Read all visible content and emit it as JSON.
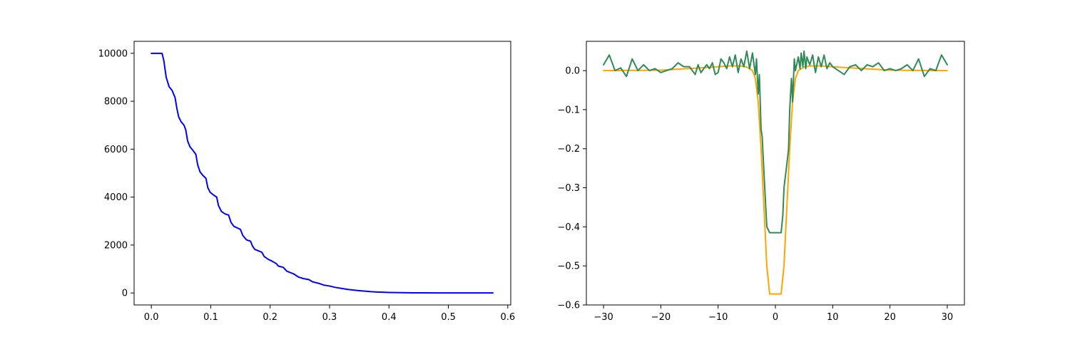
{
  "chart_data": [
    {
      "type": "line",
      "title": "",
      "xlabel": "",
      "ylabel": "",
      "xlim": [
        -0.029,
        0.605
      ],
      "ylim": [
        -500,
        10500
      ],
      "x_ticks": [
        {
          "value": 0.0,
          "label": "0.0"
        },
        {
          "value": 0.1,
          "label": "0.1"
        },
        {
          "value": 0.2,
          "label": "0.2"
        },
        {
          "value": 0.3,
          "label": "0.3"
        },
        {
          "value": 0.4,
          "label": "0.4"
        },
        {
          "value": 0.5,
          "label": "0.5"
        },
        {
          "value": 0.6,
          "label": "0.6"
        }
      ],
      "y_ticks": [
        {
          "value": 0,
          "label": "0"
        },
        {
          "value": 2000,
          "label": "2000"
        },
        {
          "value": 4000,
          "label": "4000"
        },
        {
          "value": 6000,
          "label": "6000"
        },
        {
          "value": 8000,
          "label": "8000"
        },
        {
          "value": 10000,
          "label": "10000"
        }
      ],
      "series": [
        {
          "color": "#0000ff",
          "x": [
            0.0,
            0.018,
            0.021,
            0.025,
            0.03,
            0.035,
            0.04,
            0.043,
            0.046,
            0.05,
            0.055,
            0.058,
            0.061,
            0.065,
            0.07,
            0.075,
            0.078,
            0.082,
            0.087,
            0.092,
            0.095,
            0.099,
            0.104,
            0.11,
            0.113,
            0.118,
            0.124,
            0.13,
            0.134,
            0.139,
            0.146,
            0.15,
            0.154,
            0.16,
            0.167,
            0.17,
            0.174,
            0.181,
            0.186,
            0.19,
            0.197,
            0.203,
            0.21,
            0.214,
            0.222,
            0.228,
            0.236,
            0.24,
            0.248,
            0.256,
            0.265,
            0.272,
            0.282,
            0.29,
            0.3,
            0.31,
            0.32,
            0.33,
            0.34,
            0.35,
            0.36,
            0.37,
            0.38,
            0.39,
            0.4,
            0.42,
            0.44,
            0.46,
            0.48,
            0.5,
            0.53,
            0.575
          ],
          "y": [
            10000,
            10000,
            9700,
            9000,
            8600,
            8450,
            8150,
            7700,
            7350,
            7150,
            7000,
            6800,
            6350,
            6100,
            5950,
            5780,
            5350,
            5050,
            4900,
            4780,
            4400,
            4200,
            4100,
            4000,
            3650,
            3400,
            3300,
            3250,
            2950,
            2780,
            2700,
            2650,
            2400,
            2220,
            2160,
            1970,
            1820,
            1750,
            1700,
            1520,
            1400,
            1330,
            1230,
            1120,
            1070,
            910,
            830,
            790,
            660,
            600,
            560,
            460,
            400,
            330,
            290,
            230,
            190,
            150,
            120,
            95,
            75,
            55,
            40,
            30,
            22,
            12,
            7,
            4,
            2,
            1,
            0,
            0
          ]
        }
      ]
    },
    {
      "type": "line",
      "title": "",
      "xlabel": "",
      "ylabel": "",
      "xlim": [
        -33,
        33
      ],
      "ylim": [
        -0.6,
        0.075
      ],
      "x_ticks": [
        {
          "value": -30,
          "label": "−30"
        },
        {
          "value": -20,
          "label": "−20"
        },
        {
          "value": -10,
          "label": "−10"
        },
        {
          "value": 0,
          "label": "0"
        },
        {
          "value": 10,
          "label": "10"
        },
        {
          "value": 20,
          "label": "20"
        },
        {
          "value": 30,
          "label": "30"
        }
      ],
      "y_ticks": [
        {
          "value": 0.0,
          "label": "0.0"
        },
        {
          "value": -0.1,
          "label": "−0.1"
        },
        {
          "value": -0.2,
          "label": "−0.2"
        },
        {
          "value": -0.3,
          "label": "−0.3"
        },
        {
          "value": -0.4,
          "label": "−0.4"
        },
        {
          "value": -0.5,
          "label": "−0.5"
        },
        {
          "value": -0.6,
          "label": "−0.6"
        }
      ],
      "series": [
        {
          "color": "#ffa500",
          "x": [
            -30,
            -20,
            -12,
            -8,
            -6,
            -5,
            -4,
            -3.5,
            -3,
            -2.5,
            -2,
            -1.5,
            -1,
            1,
            1.5,
            2,
            2.5,
            3,
            3.5,
            4,
            5,
            6,
            8,
            12,
            20,
            30
          ],
          "y": [
            0.0,
            0.001,
            0.008,
            0.012,
            0.012,
            0.009,
            0.0,
            -0.02,
            -0.08,
            -0.2,
            -0.35,
            -0.5,
            -0.572,
            -0.572,
            -0.5,
            -0.35,
            -0.2,
            -0.08,
            -0.02,
            0.0,
            0.009,
            0.012,
            0.012,
            0.008,
            0.001,
            0.0
          ],
          "name": ""
        },
        {
          "color": "#2e8b57",
          "x": [
            -30,
            -29,
            -28,
            -27,
            -26,
            -25,
            -24,
            -23,
            -22,
            -21,
            -20,
            -19,
            -18,
            -17,
            -16,
            -15,
            -14.5,
            -14,
            -13.5,
            -13,
            -12,
            -11.5,
            -11,
            -10.5,
            -10,
            -9.5,
            -9,
            -8.5,
            -8,
            -7.5,
            -7,
            -6.5,
            -6,
            -5.5,
            -5,
            -4.5,
            -4,
            -3.5,
            -3.3,
            -3,
            -2.8,
            -2.5,
            -2.3,
            -2,
            -1.5,
            -1,
            0,
            1,
            1.3,
            1.5,
            2,
            2.3,
            2.5,
            2.8,
            3,
            3.3,
            3.5,
            4,
            4.3,
            4.5,
            4.8,
            5,
            5.3,
            5.5,
            6,
            6.5,
            7,
            7.5,
            8,
            8.5,
            9,
            9.5,
            10,
            11,
            12,
            13,
            14,
            15,
            16,
            17,
            18,
            19,
            20,
            21,
            22,
            23,
            24,
            25,
            26,
            27,
            28,
            29,
            30
          ],
          "y": [
            0.015,
            0.04,
            0.0,
            0.007,
            -0.015,
            0.03,
            0.0,
            0.015,
            0.0,
            0.005,
            -0.005,
            0.0,
            0.005,
            0.02,
            0.01,
            0.01,
            0.0,
            -0.01,
            0.015,
            -0.005,
            0.015,
            0.005,
            0.02,
            -0.01,
            -0.005,
            0.03,
            0.02,
            0.005,
            0.035,
            0.01,
            0.04,
            -0.005,
            0.03,
            0.01,
            0.05,
            0.005,
            0.045,
            -0.01,
            0.03,
            -0.06,
            -0.01,
            -0.15,
            -0.17,
            -0.26,
            -0.4,
            -0.415,
            -0.415,
            -0.415,
            -0.37,
            -0.3,
            -0.24,
            -0.2,
            -0.1,
            -0.02,
            -0.08,
            0.03,
            0.0,
            0.035,
            0.005,
            0.045,
            0.01,
            0.05,
            0.005,
            0.035,
            0.015,
            0.04,
            -0.005,
            0.035,
            0.01,
            0.04,
            0.005,
            0.02,
            0.01,
            0.0,
            -0.01,
            0.01,
            0.015,
            0.0,
            0.015,
            0.01,
            0.02,
            0.0,
            0.005,
            0.0,
            0.005,
            0.015,
            0.0,
            0.03,
            -0.015,
            0.005,
            0.0,
            0.04,
            0.015
          ],
          "name": ""
        }
      ]
    }
  ]
}
